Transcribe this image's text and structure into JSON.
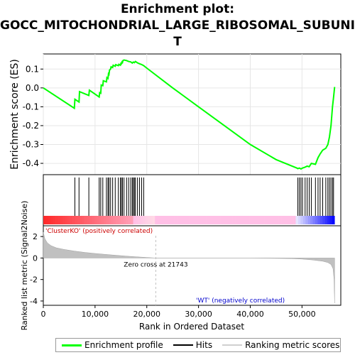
{
  "title_line1": "Enrichment plot:",
  "title_line2": "GOCC_MITOCHONDRIAL_LARGE_RIBOSOMAL_SUBUNI",
  "title_line3": "T",
  "colors": {
    "enrichment": "#00ff00",
    "hits": "#000000",
    "metric_fill": "#c0c0c0",
    "positive": "#ff0000",
    "negative": "#0000ff",
    "zero_line": "#c0c0c0"
  },
  "chart_data": {
    "type": "line",
    "xlabel": "Rank in Ordered Dataset",
    "ylabel_top": "Enrichment score (ES)",
    "ylabel_bottom": "Ranked list metric (Signal2Noise)",
    "xlim": [
      0,
      57500
    ],
    "x_ticks": [
      "0",
      "10,000",
      "20,000",
      "30,000",
      "40,000",
      "50,000"
    ],
    "x_tick_values": [
      0,
      10000,
      20000,
      30000,
      40000,
      50000
    ],
    "es_ylim": [
      -0.46,
      0.18
    ],
    "es_ticks": [
      "0.1",
      "0.0",
      "-0.1",
      "-0.2",
      "-0.3",
      "-0.4"
    ],
    "es_tick_values": [
      0.1,
      0.0,
      -0.1,
      -0.2,
      -0.3,
      -0.4
    ],
    "metric_ylim": [
      -4.4,
      3.0
    ],
    "metric_ticks": [
      "2",
      "0",
      "-2",
      "-4"
    ],
    "metric_tick_values": [
      2,
      0,
      -2,
      -4
    ],
    "zero_cross_label": "Zero cross at 21743",
    "zero_cross": 21743,
    "positive_label": "'ClusterKO' (positively correlated)",
    "negative_label": "'WT' (negatively correlated)",
    "total_ranks": 56300,
    "hits": [
      6100,
      6900,
      8800,
      10800,
      11100,
      11500,
      12200,
      12500,
      12700,
      13000,
      13400,
      13900,
      14500,
      14900,
      15100,
      15300,
      15600,
      16100,
      16500,
      16900,
      17200,
      17400,
      17600,
      17800,
      18200,
      18600,
      19000,
      19400,
      49200,
      49500,
      49800,
      50100,
      50600,
      51000,
      51400,
      51800,
      52600,
      53100,
      53500,
      54000,
      54600,
      55000,
      55300,
      55600,
      55900,
      56100
    ],
    "es_curve": {
      "x": [
        0,
        6000,
        6100,
        6900,
        7000,
        8800,
        8900,
        10800,
        10900,
        11100,
        11200,
        11500,
        11600,
        12200,
        12300,
        12500,
        12600,
        12700,
        12800,
        13000,
        13100,
        13400,
        13500,
        13900,
        14000,
        14500,
        14600,
        14900,
        15000,
        15100,
        15200,
        15300,
        15400,
        15600,
        16100,
        16500,
        16900,
        17200,
        17400,
        17600,
        17800,
        18200,
        18600,
        19000,
        19400,
        20000,
        25000,
        30000,
        35000,
        40000,
        45000,
        49000,
        49200,
        49500,
        49800,
        50100,
        50600,
        51000,
        51400,
        51800,
        52600,
        53100,
        53500,
        54000,
        54600,
        55000,
        55300,
        55600,
        55900,
        56100,
        56300
      ],
      "y": [
        0.0,
        -0.108,
        -0.06,
        -0.075,
        -0.02,
        -0.04,
        -0.012,
        -0.048,
        -0.025,
        -0.028,
        0.015,
        0.012,
        0.038,
        0.032,
        0.055,
        0.05,
        0.075,
        0.072,
        0.095,
        0.1,
        0.112,
        0.108,
        0.12,
        0.115,
        0.123,
        0.118,
        0.125,
        0.12,
        0.13,
        0.128,
        0.138,
        0.135,
        0.145,
        0.148,
        0.145,
        0.14,
        0.138,
        0.132,
        0.137,
        0.134,
        0.14,
        0.133,
        0.128,
        0.124,
        0.118,
        0.105,
        0.0,
        -0.1,
        -0.2,
        -0.3,
        -0.38,
        -0.425,
        -0.428,
        -0.425,
        -0.43,
        -0.425,
        -0.42,
        -0.415,
        -0.418,
        -0.4,
        -0.405,
        -0.37,
        -0.35,
        -0.33,
        -0.32,
        -0.3,
        -0.26,
        -0.2,
        -0.1,
        -0.05,
        0.005
      ]
    },
    "metric_curve": {
      "x": [
        0,
        300,
        800,
        1500,
        2500,
        4000,
        6000,
        8000,
        10000,
        12000,
        14000,
        16000,
        18000,
        20000,
        21743,
        30000,
        40000,
        48000,
        50000,
        52000,
        54000,
        55000,
        55600,
        56000,
        56200,
        56300
      ],
      "y": [
        2.4,
        1.8,
        1.4,
        1.15,
        0.95,
        0.8,
        0.65,
        0.52,
        0.42,
        0.34,
        0.26,
        0.18,
        0.11,
        0.05,
        0.0,
        0.0,
        0.0,
        -0.05,
        -0.1,
        -0.18,
        -0.3,
        -0.42,
        -0.6,
        -1.0,
        -2.0,
        -4.2
      ]
    },
    "legend": [
      "Enrichment profile",
      "Hits",
      "Ranking metric scores"
    ]
  }
}
